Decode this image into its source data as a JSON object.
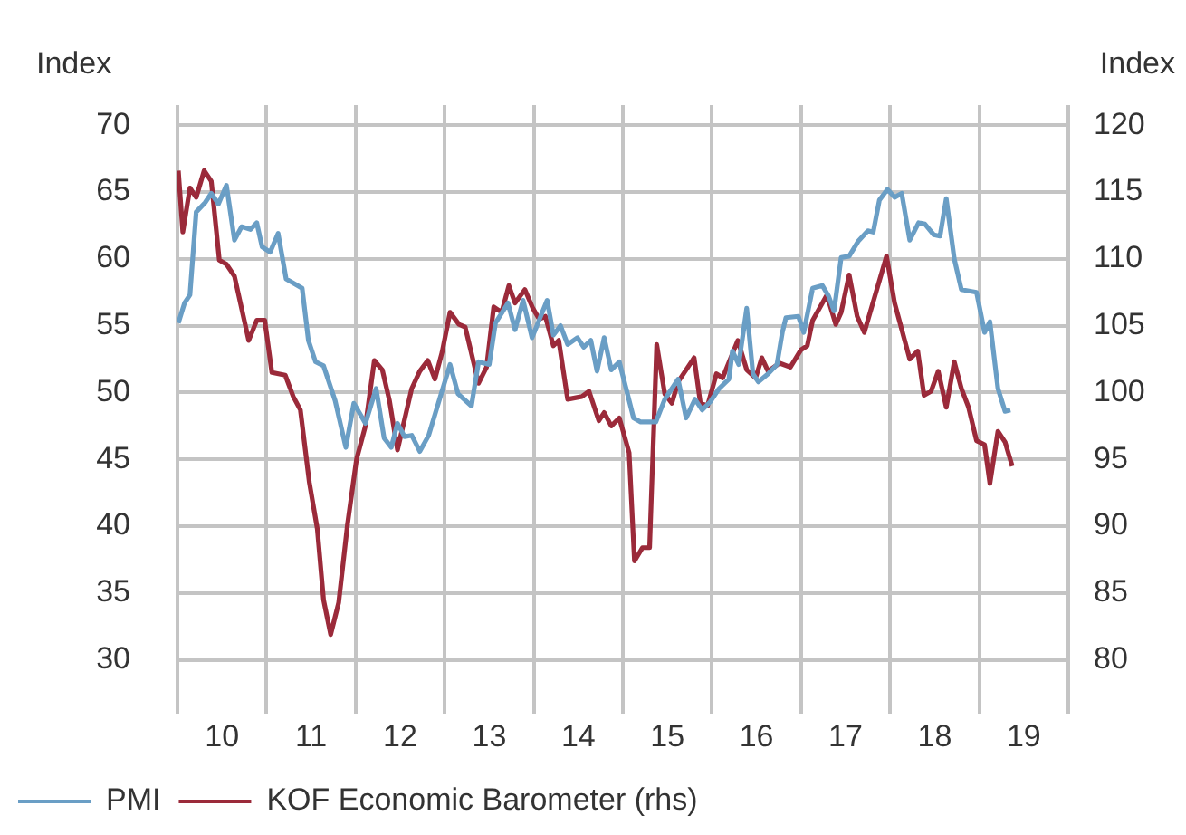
{
  "chart_data": {
    "type": "line",
    "ylabel": "Index",
    "y2label": "Index",
    "xlim": [
      9.5,
      19.5
    ],
    "xticks": [
      {
        "value": 9.5,
        "label": null
      },
      10,
      {
        "value": 10.5,
        "label": null
      },
      11,
      {
        "value": 11.5,
        "label": null
      },
      12,
      {
        "value": 12.5,
        "label": null
      },
      13,
      {
        "value": 13.5,
        "label": null
      },
      14,
      {
        "value": 14.5,
        "label": null
      },
      15,
      {
        "value": 15.5,
        "label": null
      },
      16,
      {
        "value": 16.5,
        "label": null
      },
      17,
      {
        "value": 17.5,
        "label": null
      },
      18,
      {
        "value": 18.5,
        "label": null
      },
      19,
      {
        "value": 19.5,
        "label": null
      }
    ],
    "ylim": [
      26.8,
      71.5
    ],
    "yticks": [
      30,
      35,
      40,
      45,
      50,
      55,
      60,
      65,
      70
    ],
    "y2lim": [
      76.8,
      121.5
    ],
    "y2ticks": [
      80,
      85,
      90,
      95,
      100,
      105,
      110,
      115,
      120
    ],
    "grid": true,
    "legend": "bottom left",
    "marker": "none",
    "line_style": "solid",
    "series": [
      {
        "name": "PMI",
        "color": "#6a9ec5",
        "x": [
          9.51,
          9.58,
          9.64,
          9.71,
          9.81,
          9.88,
          9.96,
          10.05,
          10.14,
          10.22,
          10.32,
          10.39,
          10.45,
          10.54,
          10.63,
          10.72,
          10.9,
          10.97,
          11.05,
          11.14,
          11.27,
          11.39,
          11.48,
          11.61,
          11.73,
          11.82,
          11.9,
          11.97,
          12.05,
          12.13,
          12.22,
          12.32,
          12.46,
          12.56,
          12.65,
          12.8,
          12.88,
          13.0,
          13.07,
          13.21,
          13.29,
          13.38,
          13.48,
          13.65,
          13.72,
          13.8,
          13.88,
          13.99,
          14.06,
          14.14,
          14.21,
          14.29,
          14.37,
          14.46,
          14.62,
          14.7,
          14.87,
          14.97,
          15.12,
          15.21,
          15.31,
          15.39,
          15.48,
          15.58,
          15.69,
          15.73,
          15.8,
          15.89,
          15.96,
          16.02,
          16.13,
          16.23,
          16.29,
          16.33,
          16.47,
          16.53,
          16.63,
          16.74,
          16.81,
          16.87,
          16.95,
          17.04,
          17.14,
          17.25,
          17.31,
          17.38,
          17.47,
          17.55,
          17.63,
          17.72,
          17.82,
          17.89,
          17.99,
          18.06,
          18.13,
          18.22,
          18.3,
          18.47,
          18.56,
          18.62,
          18.71,
          18.79,
          18.85
        ],
        "values": [
          55.2,
          56.7,
          57.3,
          63.5,
          64.2,
          64.9,
          64.1,
          65.5,
          61.4,
          62.4,
          62.2,
          62.7,
          60.9,
          60.5,
          61.9,
          58.5,
          57.8,
          53.9,
          52.3,
          52.0,
          49.4,
          45.9,
          49.2,
          47.7,
          50.3,
          46.6,
          45.9,
          47.7,
          46.7,
          46.8,
          45.6,
          46.8,
          49.9,
          52.1,
          49.9,
          49.0,
          52.3,
          52.1,
          55.2,
          56.7,
          54.7,
          56.9,
          54.1,
          56.9,
          54.3,
          55.0,
          53.6,
          54.1,
          53.4,
          53.9,
          51.6,
          54.1,
          51.7,
          52.3,
          48.1,
          47.8,
          47.8,
          49.5,
          51.0,
          48.1,
          49.5,
          48.7,
          49.3,
          50.3,
          51.0,
          53.1,
          52.1,
          56.3,
          51.4,
          50.8,
          51.4,
          52.1,
          54.5,
          55.6,
          55.7,
          54.5,
          57.8,
          58.0,
          57.2,
          56.1,
          60.1,
          60.2,
          61.3,
          62.1,
          62.0,
          64.4,
          65.2,
          64.6,
          64.9,
          61.4,
          62.7,
          62.6,
          61.8,
          61.7,
          64.5,
          60.0,
          57.7,
          57.5,
          54.5,
          55.3,
          50.3,
          48.6,
          48.7
        ]
      },
      {
        "name": "KOF Economic Barometer (rhs)",
        "color": "#9b2a3a",
        "axis": "y2",
        "x": [
          9.51,
          9.56,
          9.64,
          9.71,
          9.8,
          9.88,
          9.97,
          10.05,
          10.14,
          10.3,
          10.39,
          10.48,
          10.56,
          10.71,
          10.8,
          10.88,
          10.98,
          11.07,
          11.14,
          11.22,
          11.31,
          11.41,
          11.51,
          11.61,
          11.71,
          11.8,
          11.88,
          11.97,
          12.13,
          12.22,
          12.31,
          12.39,
          12.47,
          12.56,
          12.66,
          12.73,
          12.88,
          12.97,
          13.05,
          13.14,
          13.22,
          13.29,
          13.4,
          13.49,
          13.56,
          13.63,
          13.72,
          13.78,
          13.88,
          14.04,
          14.12,
          14.23,
          14.29,
          14.37,
          14.46,
          14.57,
          14.63,
          14.72,
          14.8,
          14.88,
          14.97,
          15.05,
          15.12,
          15.3,
          15.37,
          15.45,
          15.55,
          15.62,
          15.79,
          15.89,
          15.99,
          16.06,
          16.13,
          16.26,
          16.38,
          16.5,
          16.57,
          16.63,
          16.79,
          16.89,
          16.95,
          17.04,
          17.13,
          17.21,
          17.46,
          17.55,
          17.72,
          17.81,
          17.88,
          17.96,
          18.04,
          18.13,
          18.22,
          18.3,
          18.38,
          18.47,
          18.56,
          18.62,
          18.71,
          18.79,
          18.87
        ],
        "values": [
          116.6,
          112.0,
          115.3,
          114.6,
          116.6,
          115.8,
          109.9,
          109.6,
          108.7,
          103.9,
          105.4,
          105.4,
          101.5,
          101.3,
          99.7,
          98.7,
          93.3,
          89.8,
          84.5,
          81.9,
          84.3,
          90.2,
          95.0,
          97.5,
          102.4,
          101.7,
          99.4,
          95.7,
          100.3,
          101.6,
          102.4,
          101.0,
          103.0,
          106.0,
          105.1,
          104.9,
          100.7,
          101.9,
          106.4,
          106.0,
          108.0,
          106.7,
          107.7,
          106.3,
          105.5,
          105.7,
          103.5,
          103.9,
          99.5,
          99.7,
          100.1,
          97.9,
          98.5,
          97.5,
          98.1,
          95.5,
          87.4,
          88.4,
          88.4,
          103.6,
          99.9,
          99.2,
          100.8,
          102.6,
          99.2,
          99.0,
          101.4,
          101.1,
          103.9,
          101.7,
          101.1,
          102.6,
          101.6,
          102.2,
          101.9,
          103.2,
          103.5,
          105.4,
          107.3,
          105.1,
          106.0,
          108.8,
          105.7,
          104.5,
          110.2,
          106.7,
          102.5,
          103.1,
          99.8,
          100.1,
          101.6,
          98.9,
          102.3,
          100.3,
          98.9,
          96.4,
          96.1,
          93.2,
          97.1,
          96.3,
          94.5
        ]
      }
    ]
  }
}
